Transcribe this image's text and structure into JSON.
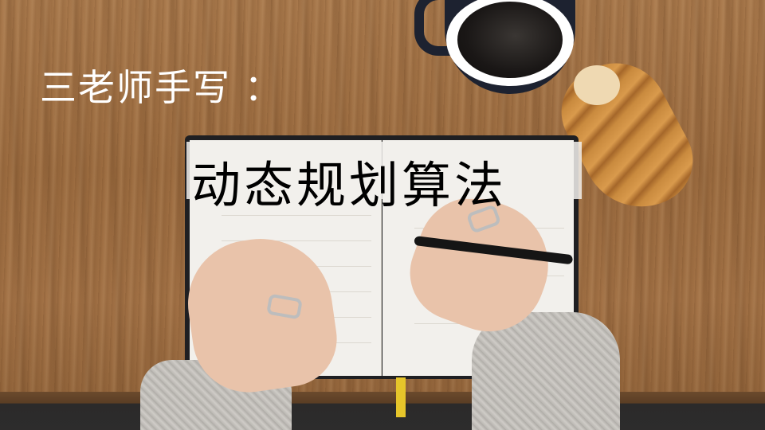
{
  "overlay": {
    "subtitle": "三老师手写 ：",
    "title": "动态规划算法"
  },
  "scene": {
    "objects": [
      "coffee-cup",
      "croissant",
      "open-notebook",
      "hands-writing",
      "pen"
    ],
    "colors": {
      "table": "#9c6c40",
      "title_text": "#000000",
      "subtitle_text": "#ffffff",
      "bookmark": "#e6c52a"
    }
  }
}
